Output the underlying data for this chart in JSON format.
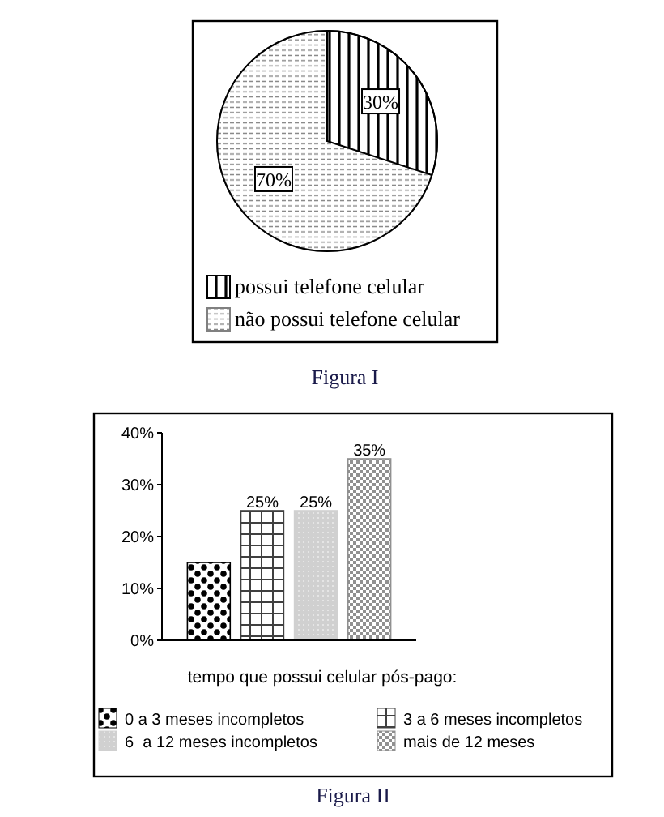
{
  "chart_data": [
    {
      "type": "pie",
      "categories": [
        "possui telefone celular",
        "não possui telefone celular"
      ],
      "values": [
        30,
        70
      ],
      "colors": [
        "#000000",
        "#808080"
      ],
      "value_labels": [
        "30%",
        "70%"
      ],
      "legend": "bottom",
      "annotations": [
        "Figura I"
      ]
    },
    {
      "type": "bar",
      "categories": [
        null
      ],
      "series": [
        {
          "name": "0 a 3 meses incompletos",
          "color": "#000000",
          "values": [
            15
          ],
          "value_labels": [
            null
          ]
        },
        {
          "name": "3 a 6 meses incompletos",
          "color": "#404040",
          "values": [
            25
          ],
          "value_labels": [
            "25%"
          ]
        },
        {
          "name": "6  a 12 meses incompletos",
          "color": "#d0d0d0",
          "values": [
            25
          ],
          "value_labels": [
            "25%"
          ]
        },
        {
          "name": "mais de 12 meses",
          "color": "#909090",
          "values": [
            35
          ],
          "value_labels": [
            "35%"
          ]
        }
      ],
      "xlabel": "tempo que possui celular pós-pago:",
      "ylim": [
        0,
        40
      ],
      "yticks": [
        {
          "value": 0,
          "label": "0%"
        },
        {
          "value": 10,
          "label": "10%"
        },
        {
          "value": 20,
          "label": "20%"
        },
        {
          "value": 30,
          "label": "30%"
        },
        {
          "value": 40,
          "label": "40%"
        }
      ],
      "legend": "bottom",
      "annotations": [
        "Figura II"
      ]
    }
  ]
}
